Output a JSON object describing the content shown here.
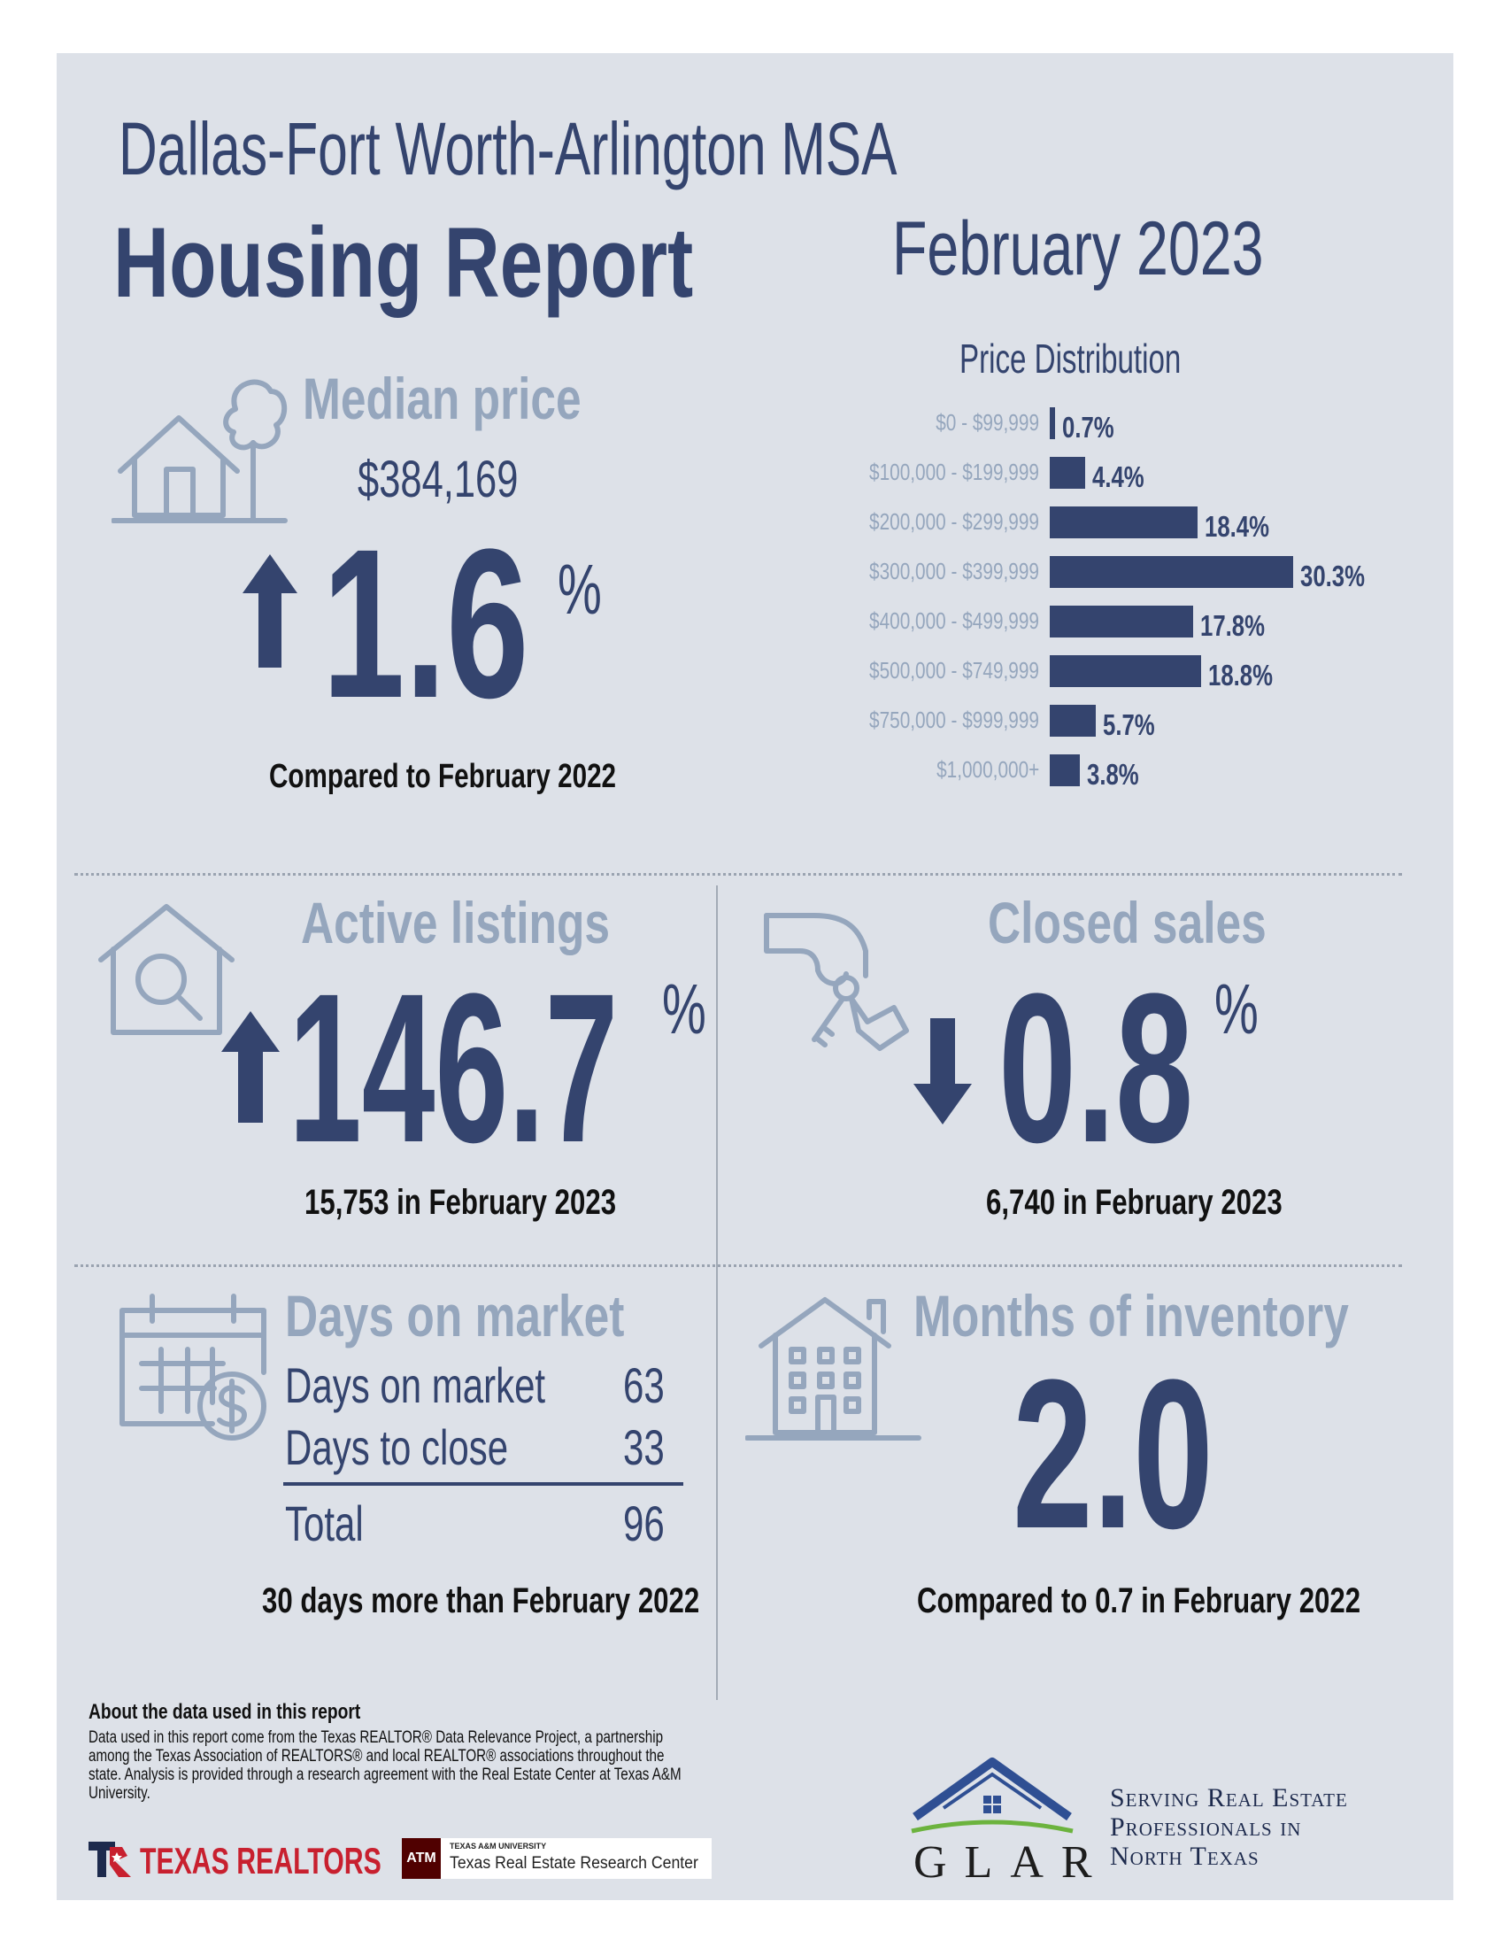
{
  "header": {
    "region": "Dallas-Fort Worth-Arlington MSA",
    "title": "Housing Report",
    "period": "February 2023"
  },
  "median_price": {
    "label": "Median price",
    "value": "$384,169",
    "change": "1.6",
    "unit": "%",
    "direction": "up",
    "note": "Compared to February 2022"
  },
  "chart_data": {
    "type": "bar",
    "title": "Price Distribution",
    "orientation": "horizontal",
    "categories": [
      "$0 - $99,999",
      "$100,000 - $199,999",
      "$200,000 - $299,999",
      "$300,000 - $399,999",
      "$400,000 - $499,999",
      "$500,000 - $749,999",
      "$750,000 - $999,999",
      "$1,000,000+"
    ],
    "values": [
      0.7,
      4.4,
      18.4,
      30.3,
      17.8,
      18.8,
      5.7,
      3.8
    ],
    "labels": [
      "0.7%",
      "4.4%",
      "18.4%",
      "30.3%",
      "17.8%",
      "18.8%",
      "5.7%",
      "3.8%"
    ],
    "xlim": [
      0,
      30.3
    ],
    "xlabel": "",
    "ylabel": ""
  },
  "active_listings": {
    "label": "Active listings",
    "change": "146.7",
    "unit": "%",
    "direction": "up",
    "note": "15,753 in February 2023"
  },
  "closed_sales": {
    "label": "Closed sales",
    "change": "0.8",
    "unit": "%",
    "direction": "down",
    "note": "6,740 in February 2023"
  },
  "days_on_market": {
    "label": "Days on market",
    "rows": [
      {
        "label": "Days on market",
        "value": "63"
      },
      {
        "label": "Days to close",
        "value": "33"
      }
    ],
    "total_label": "Total",
    "total_value": "96",
    "note": "30 days more than February 2022"
  },
  "months_inventory": {
    "label": "Months of inventory",
    "value": "2.0",
    "note": "Compared to 0.7 in February 2022"
  },
  "footer": {
    "about_title": "About the data used in this report",
    "about_text": "Data used in this report come from the Texas REALTOR® Data Relevance Project, a partnership among the Texas Association of REALTORS® and local REALTOR® associations throughout the state. Analysis is provided through a research agreement with the Real Estate Center at Texas A&M University.",
    "texas_realtors": "TEXAS REALTORS",
    "tamu_small": "TEXAS A&M UNIVERSITY",
    "tamu_name": "Texas Real Estate Research Center",
    "tamu_logo_text": "ATM",
    "glar": "GLAR",
    "glar_tagline": [
      "Serving Real Estate",
      "Professionals in",
      "North Texas"
    ]
  },
  "colors": {
    "navy": "#34446e",
    "light": "#95a6bd",
    "panel": "#dde1e8"
  }
}
